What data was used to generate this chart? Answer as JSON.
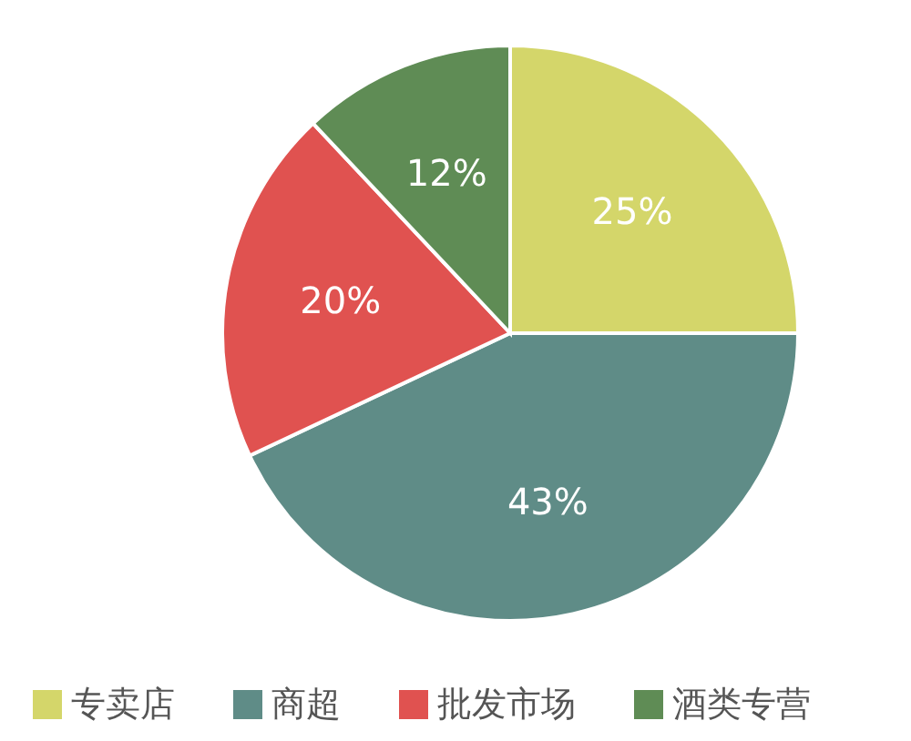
{
  "chart_data": {
    "type": "pie",
    "categories": [
      "专卖店",
      "商超",
      "批发市场",
      "酒类专营"
    ],
    "values": [
      25,
      43,
      20,
      12
    ],
    "colors": [
      "#d4d66a",
      "#5f8c87",
      "#e05250",
      "#5f8c55"
    ],
    "value_labels": [
      "25%",
      "43%",
      "20%",
      "12%"
    ],
    "legend": "bottom"
  }
}
